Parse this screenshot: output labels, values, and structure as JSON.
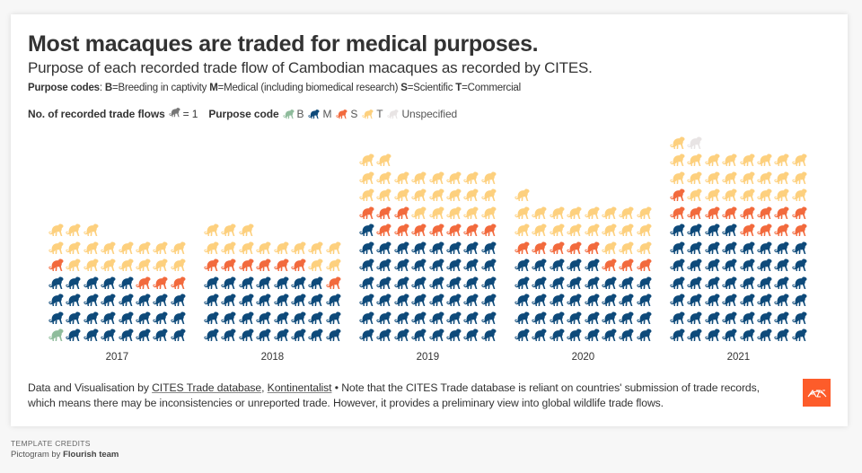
{
  "header": {
    "title": "Most macaques are traded for medical purposes.",
    "subtitle": "Purpose of each recorded trade flow of Cambodian macaques as recorded by CITES.",
    "codes_prefix": "Purpose codes",
    "codes_sep": ": ",
    "codes": [
      {
        "code": "B",
        "desc": "=Breeding in captivity "
      },
      {
        "code": "M",
        "desc": "=Medical (including biomedical research) "
      },
      {
        "code": "S",
        "desc": "=Scientific "
      },
      {
        "code": "T",
        "desc": "=Commercial"
      }
    ]
  },
  "legend": {
    "unit_label": "No. of recorded trade flows",
    "unit_value": "= 1",
    "purpose_label": "Purpose code",
    "items": [
      {
        "key": "B",
        "label": "B",
        "color": "#8fbc9c"
      },
      {
        "key": "M",
        "label": "M",
        "color": "#0e4a7a"
      },
      {
        "key": "S",
        "label": "S",
        "color": "#f26a3d"
      },
      {
        "key": "T",
        "label": "T",
        "color": "#fdd07e"
      },
      {
        "key": "U",
        "label": "Unspecified",
        "color": "#e8e4e4"
      }
    ],
    "unit_icon_color": "#777777"
  },
  "chart_data": {
    "type": "pictogram",
    "title": "Most macaques are traded for medical purposes.",
    "subtitle": "Purpose of each recorded trade flow of Cambodian macaques as recorded by CITES.",
    "unit": "1 icon = 1 recorded trade flow",
    "icons_per_row": 8,
    "stack_order": [
      "B",
      "M",
      "S",
      "T",
      "U"
    ],
    "categories": [
      "2017",
      "2018",
      "2019",
      "2020",
      "2021"
    ],
    "series": [
      {
        "name": "B",
        "label": "Breeding in captivity",
        "color": "#8fbc9c",
        "values": [
          1,
          0,
          0,
          0,
          0
        ]
      },
      {
        "name": "M",
        "label": "Medical (including biomedical research)",
        "color": "#0e4a7a",
        "values": [
          28,
          31,
          49,
          37,
          52
        ]
      },
      {
        "name": "S",
        "label": "Scientific",
        "color": "#f26a3d",
        "values": [
          4,
          7,
          10,
          8,
          13
        ]
      },
      {
        "name": "T",
        "label": "Commercial",
        "color": "#fdd07e",
        "values": [
          18,
          13,
          23,
          20,
          24
        ]
      },
      {
        "name": "U",
        "label": "Unspecified",
        "color": "#e8e4e4",
        "values": [
          0,
          0,
          0,
          0,
          1
        ]
      }
    ],
    "totals": [
      51,
      51,
      82,
      65,
      90
    ]
  },
  "footer": {
    "prefix": "Data and Visualisation by ",
    "link1": "CITES Trade database",
    "sep": ", ",
    "link2": "Kontinentalist",
    "note": " • Note that the CITES Trade database is reliant on countries' submission of trade records, which means there may be inconsistencies or unreported trade. However, it provides a preliminary view into global wildlife trade flows."
  },
  "credits": {
    "heading": "TEMPLATE CREDITS",
    "prefix": "Pictogram by ",
    "author": "Flourish team"
  }
}
